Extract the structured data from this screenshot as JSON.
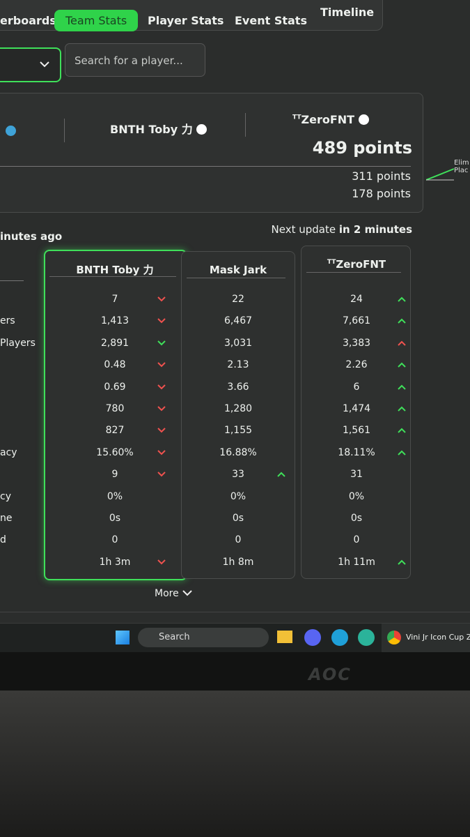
{
  "tabs": [
    "erboards",
    "Team Stats",
    "Player Stats",
    "Event Stats",
    "Timeline"
  ],
  "filters": {
    "search_placeholder": "Search for a player..."
  },
  "summary": {
    "players": [
      {
        "name": "BNTH Toby 力"
      },
      {
        "tag": "TT",
        "name": "ZeroFNT"
      }
    ],
    "total": "489 points",
    "breakdown": [
      "311 points",
      "178 points"
    ]
  },
  "side_labels": [
    "Elim",
    "Plac"
  ],
  "update": {
    "last": "inutes ago",
    "next_prefix": "Next update",
    "next_time": "in 2 minutes"
  },
  "table": {
    "row_labels": [
      null,
      "ers",
      "Players",
      null,
      null,
      null,
      null,
      "acy",
      null,
      "cy",
      "ne",
      "d",
      null
    ],
    "columns": [
      {
        "name": "BNTH Toby 力",
        "highlight": true,
        "values": [
          "7",
          "1,413",
          "2,891",
          "0.48",
          "0.69",
          "780",
          "827",
          "15.60%",
          "9",
          "0%",
          "0s",
          "0",
          "1h 3m"
        ],
        "trends": [
          {
            "dir": "down",
            "color": "#f0524f"
          },
          {
            "dir": "down",
            "color": "#f0524f"
          },
          {
            "dir": "down",
            "color": "#3fe05a"
          },
          {
            "dir": "down",
            "color": "#f0524f"
          },
          {
            "dir": "down",
            "color": "#f0524f"
          },
          {
            "dir": "down",
            "color": "#f0524f"
          },
          {
            "dir": "down",
            "color": "#f0524f"
          },
          {
            "dir": "down",
            "color": "#f0524f"
          },
          {
            "dir": "down",
            "color": "#f0524f"
          },
          null,
          null,
          null,
          {
            "dir": "down",
            "color": "#f0524f"
          }
        ]
      },
      {
        "name": "Mask Jark",
        "highlight": false,
        "values": [
          "22",
          "6,467",
          "3,031",
          "2.13",
          "3.66",
          "1,280",
          "1,155",
          "16.88%",
          "33",
          "0%",
          "0s",
          "0",
          "1h 8m"
        ],
        "trends": [
          null,
          null,
          null,
          null,
          null,
          null,
          null,
          null,
          {
            "dir": "up",
            "color": "#3fe05a"
          },
          null,
          null,
          null,
          null
        ]
      },
      {
        "tag": "TT",
        "name": "ZeroFNT",
        "highlight": false,
        "values": [
          "24",
          "7,661",
          "3,383",
          "2.26",
          "6",
          "1,474",
          "1,561",
          "18.11%",
          "31",
          "0%",
          "0s",
          "0",
          "1h 11m"
        ],
        "trends": [
          {
            "dir": "up",
            "color": "#3fe05a"
          },
          {
            "dir": "up",
            "color": "#3fe05a"
          },
          {
            "dir": "up",
            "color": "#f0524f"
          },
          {
            "dir": "up",
            "color": "#3fe05a"
          },
          {
            "dir": "up",
            "color": "#3fe05a"
          },
          {
            "dir": "up",
            "color": "#3fe05a"
          },
          {
            "dir": "up",
            "color": "#3fe05a"
          },
          {
            "dir": "up",
            "color": "#3fe05a"
          },
          null,
          null,
          null,
          null,
          {
            "dir": "up",
            "color": "#3fe05a"
          }
        ]
      }
    ]
  },
  "more": "More",
  "taskbar": {
    "search": "Search",
    "window_title": "Vini Jr Icon Cup Ze"
  },
  "monitor_brand": "AOC"
}
